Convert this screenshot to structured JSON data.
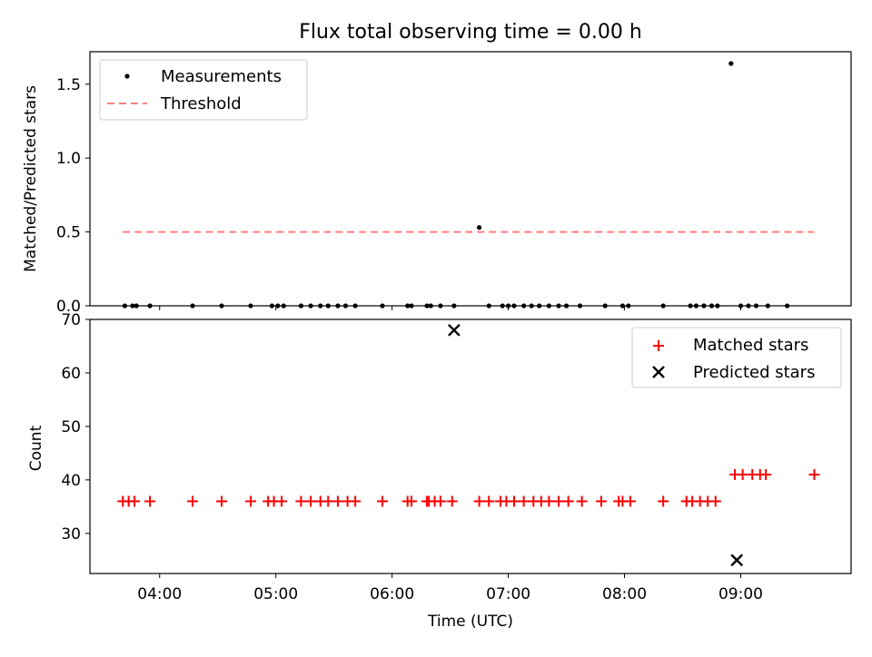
{
  "chart_data": [
    {
      "type": "scatter",
      "title": "Flux total observing time = 0.00 h",
      "xlabel": "",
      "ylabel": "Matched/Predicted stars",
      "ylim": [
        0,
        1.72
      ],
      "yticks": [
        "0.0",
        "0.5",
        "1.0",
        "1.5"
      ],
      "legend": {
        "position": "top-left",
        "entries": [
          "Measurements",
          "Threshold"
        ]
      },
      "series": [
        {
          "name": "Measurements",
          "color": "#000000",
          "marker": "dot",
          "x": [
            "03:42",
            "03:46",
            "03:48",
            "03:55",
            "04:17",
            "04:32",
            "04:47",
            "04:58",
            "05:01",
            "05:04",
            "05:13",
            "05:18",
            "05:23",
            "05:27",
            "05:32",
            "05:36",
            "05:41",
            "05:55",
            "06:08",
            "06:10",
            "06:18",
            "06:20",
            "06:25",
            "06:32",
            "06:45",
            "06:50",
            "06:57",
            "07:00",
            "07:03",
            "07:08",
            "07:12",
            "07:16",
            "07:21",
            "07:26",
            "07:30",
            "07:37",
            "07:50",
            "07:59",
            "08:02",
            "08:20",
            "08:34",
            "08:37",
            "08:41",
            "08:45",
            "08:48",
            "08:55",
            "09:00",
            "09:04",
            "09:08",
            "09:14",
            "09:24"
          ],
          "y": [
            0,
            0,
            0,
            0,
            0,
            0,
            0,
            0,
            0,
            0,
            0,
            0,
            0,
            0,
            0,
            0,
            0,
            0,
            0,
            0,
            0,
            0,
            0,
            0,
            0.53,
            0,
            0,
            0,
            0,
            0,
            0,
            0,
            0,
            0,
            0,
            0,
            0,
            0,
            0,
            0,
            0,
            0,
            0,
            0,
            0,
            1.64,
            0,
            0,
            0,
            0,
            0
          ]
        },
        {
          "name": "Threshold",
          "color": "#ff7f7f",
          "style": "dashed",
          "x": [
            "03:41",
            "09:38"
          ],
          "y": [
            0.5,
            0.5
          ]
        }
      ]
    },
    {
      "type": "scatter",
      "title": "",
      "xlabel": "Time (UTC)",
      "ylabel": "Count",
      "ylim": [
        22.5,
        70
      ],
      "yticks": [
        "30",
        "40",
        "50",
        "60",
        "70"
      ],
      "xticks": [
        "04:00",
        "05:00",
        "06:00",
        "07:00",
        "08:00",
        "09:00"
      ],
      "legend": {
        "position": "top-right",
        "entries": [
          "Matched stars",
          "Predicted stars"
        ]
      },
      "series": [
        {
          "name": "Matched stars",
          "color": "#ff0000",
          "marker": "plus",
          "x": [
            "03:41",
            "03:44",
            "03:47",
            "03:55",
            "04:17",
            "04:32",
            "04:47",
            "04:56",
            "04:59",
            "05:03",
            "05:13",
            "05:18",
            "05:23",
            "05:27",
            "05:32",
            "05:37",
            "05:41",
            "05:55",
            "06:08",
            "06:10",
            "06:18",
            "06:19",
            "06:22",
            "06:25",
            "06:31",
            "06:45",
            "06:50",
            "06:56",
            "06:59",
            "07:03",
            "07:08",
            "07:13",
            "07:17",
            "07:21",
            "07:26",
            "07:31",
            "07:38",
            "07:48",
            "07:57",
            "07:59",
            "08:03",
            "08:20",
            "08:32",
            "08:35",
            "08:39",
            "08:43",
            "08:47",
            "08:57",
            "09:01",
            "09:06",
            "09:10",
            "09:13",
            "09:38"
          ],
          "y": [
            36,
            36,
            36,
            36,
            36,
            36,
            36,
            36,
            36,
            36,
            36,
            36,
            36,
            36,
            36,
            36,
            36,
            36,
            36,
            36,
            36,
            36,
            36,
            36,
            36,
            36,
            36,
            36,
            36,
            36,
            36,
            36,
            36,
            36,
            36,
            36,
            36,
            36,
            36,
            36,
            36,
            36,
            36,
            36,
            36,
            36,
            36,
            41,
            41,
            41,
            41,
            41,
            41
          ]
        },
        {
          "name": "Predicted stars",
          "color": "#000000",
          "marker": "x",
          "x": [
            "06:32",
            "08:58"
          ],
          "y": [
            68,
            25
          ]
        }
      ]
    }
  ]
}
